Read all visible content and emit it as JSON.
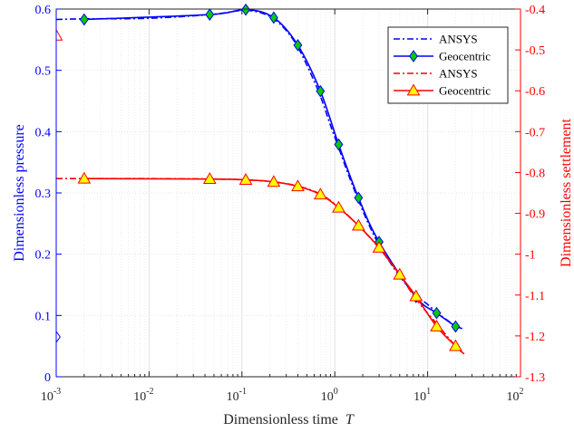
{
  "chart_data": {
    "type": "line",
    "x_scale": "log",
    "xlim": [
      0.001,
      100
    ],
    "x_ticks": [
      0.001,
      0.01,
      0.1,
      1,
      10,
      100
    ],
    "xlabel": "Dimensionless time",
    "xlabel_var": "T",
    "left_axis": {
      "label": "Dimensionless pressure",
      "color": "#0000ff",
      "ylim": [
        0,
        0.6
      ],
      "ticks": [
        0,
        0.1,
        0.2,
        0.3,
        0.4,
        0.5,
        0.6
      ],
      "tick_labels": [
        "0",
        "0.1",
        "0.2",
        "0.3",
        "0.4",
        "0.5",
        "0.6"
      ]
    },
    "right_axis": {
      "label": "Dimensionless settlement",
      "color": "#ff0000",
      "ylim": [
        -1.3,
        -0.4
      ],
      "ticks": [
        -0.4,
        -0.5,
        -0.6,
        -0.7,
        -0.8,
        -0.9,
        -1.0,
        -1.1,
        -1.2,
        -1.3
      ],
      "tick_labels": [
        "-0.4",
        "-0.5",
        "-0.6",
        "-0.7",
        "-0.8",
        "-0.9",
        "-1",
        "-1.1",
        "-1.2",
        "-1.3"
      ]
    },
    "grid": true,
    "legend_position": "top-right",
    "series": [
      {
        "name": "ANSYS",
        "axis": "left",
        "color": "#0000ff",
        "line": "dash-dot",
        "marker": "none",
        "x": [
          0.001,
          0.002,
          0.01,
          0.045,
          0.08,
          0.11,
          0.16,
          0.22,
          0.3,
          0.4,
          0.55,
          0.7,
          0.9,
          1.1,
          1.4,
          1.8,
          2.3,
          3.0,
          4.0,
          5.0,
          6.0,
          7.5,
          10,
          12.5,
          16,
          20,
          25
        ],
        "y": [
          0.583,
          0.584,
          0.585,
          0.591,
          0.596,
          0.598,
          0.594,
          0.584,
          0.565,
          0.538,
          0.495,
          0.458,
          0.41,
          0.374,
          0.33,
          0.288,
          0.25,
          0.215,
          0.185,
          0.164,
          0.149,
          0.133,
          0.118,
          0.105,
          0.093,
          0.083,
          0.077
        ]
      },
      {
        "name": "Geocentric",
        "axis": "left",
        "color": "#0000ff",
        "line": "solid",
        "marker": "diamond",
        "marker_fill": "#00cc00",
        "x": [
          0.002,
          0.045,
          0.11,
          0.22,
          0.4,
          0.7,
          1.1,
          1.8,
          3.0,
          7.5,
          12.5,
          20
        ],
        "y": [
          0.583,
          0.591,
          0.599,
          0.586,
          0.541,
          0.466,
          0.379,
          0.292,
          0.22,
          0.13,
          0.104,
          0.082
        ],
        "extra_points": [
          {
            "x": 0.001,
            "y": 0.065
          }
        ]
      },
      {
        "name": "ANSYS",
        "axis": "right",
        "color": "#ff0000",
        "line": "dash-dot",
        "marker": "none",
        "x": [
          0.001,
          0.002,
          0.01,
          0.045,
          0.11,
          0.22,
          0.4,
          0.7,
          1.1,
          1.8,
          3.0,
          5.0,
          7.5,
          12.5,
          20,
          25
        ],
        "y": [
          -0.815,
          -0.815,
          -0.815,
          -0.816,
          -0.818,
          -0.823,
          -0.833,
          -0.853,
          -0.885,
          -0.93,
          -0.985,
          -1.05,
          -1.11,
          -1.17,
          -1.225,
          -1.245
        ]
      },
      {
        "name": "Geocentric",
        "axis": "right",
        "color": "#ff0000",
        "line": "solid",
        "marker": "triangle",
        "marker_fill": "#ffff00",
        "x": [
          0.002,
          0.045,
          0.11,
          0.22,
          0.4,
          0.7,
          1.1,
          1.8,
          3.0,
          5.0,
          7.5,
          12.5,
          20
        ],
        "y": [
          -0.815,
          -0.816,
          -0.818,
          -0.823,
          -0.834,
          -0.854,
          -0.886,
          -0.93,
          -0.984,
          -1.05,
          -1.103,
          -1.177,
          -1.225
        ],
        "extra_points": [
          {
            "x": 0.001,
            "y": -0.465
          }
        ]
      }
    ]
  }
}
